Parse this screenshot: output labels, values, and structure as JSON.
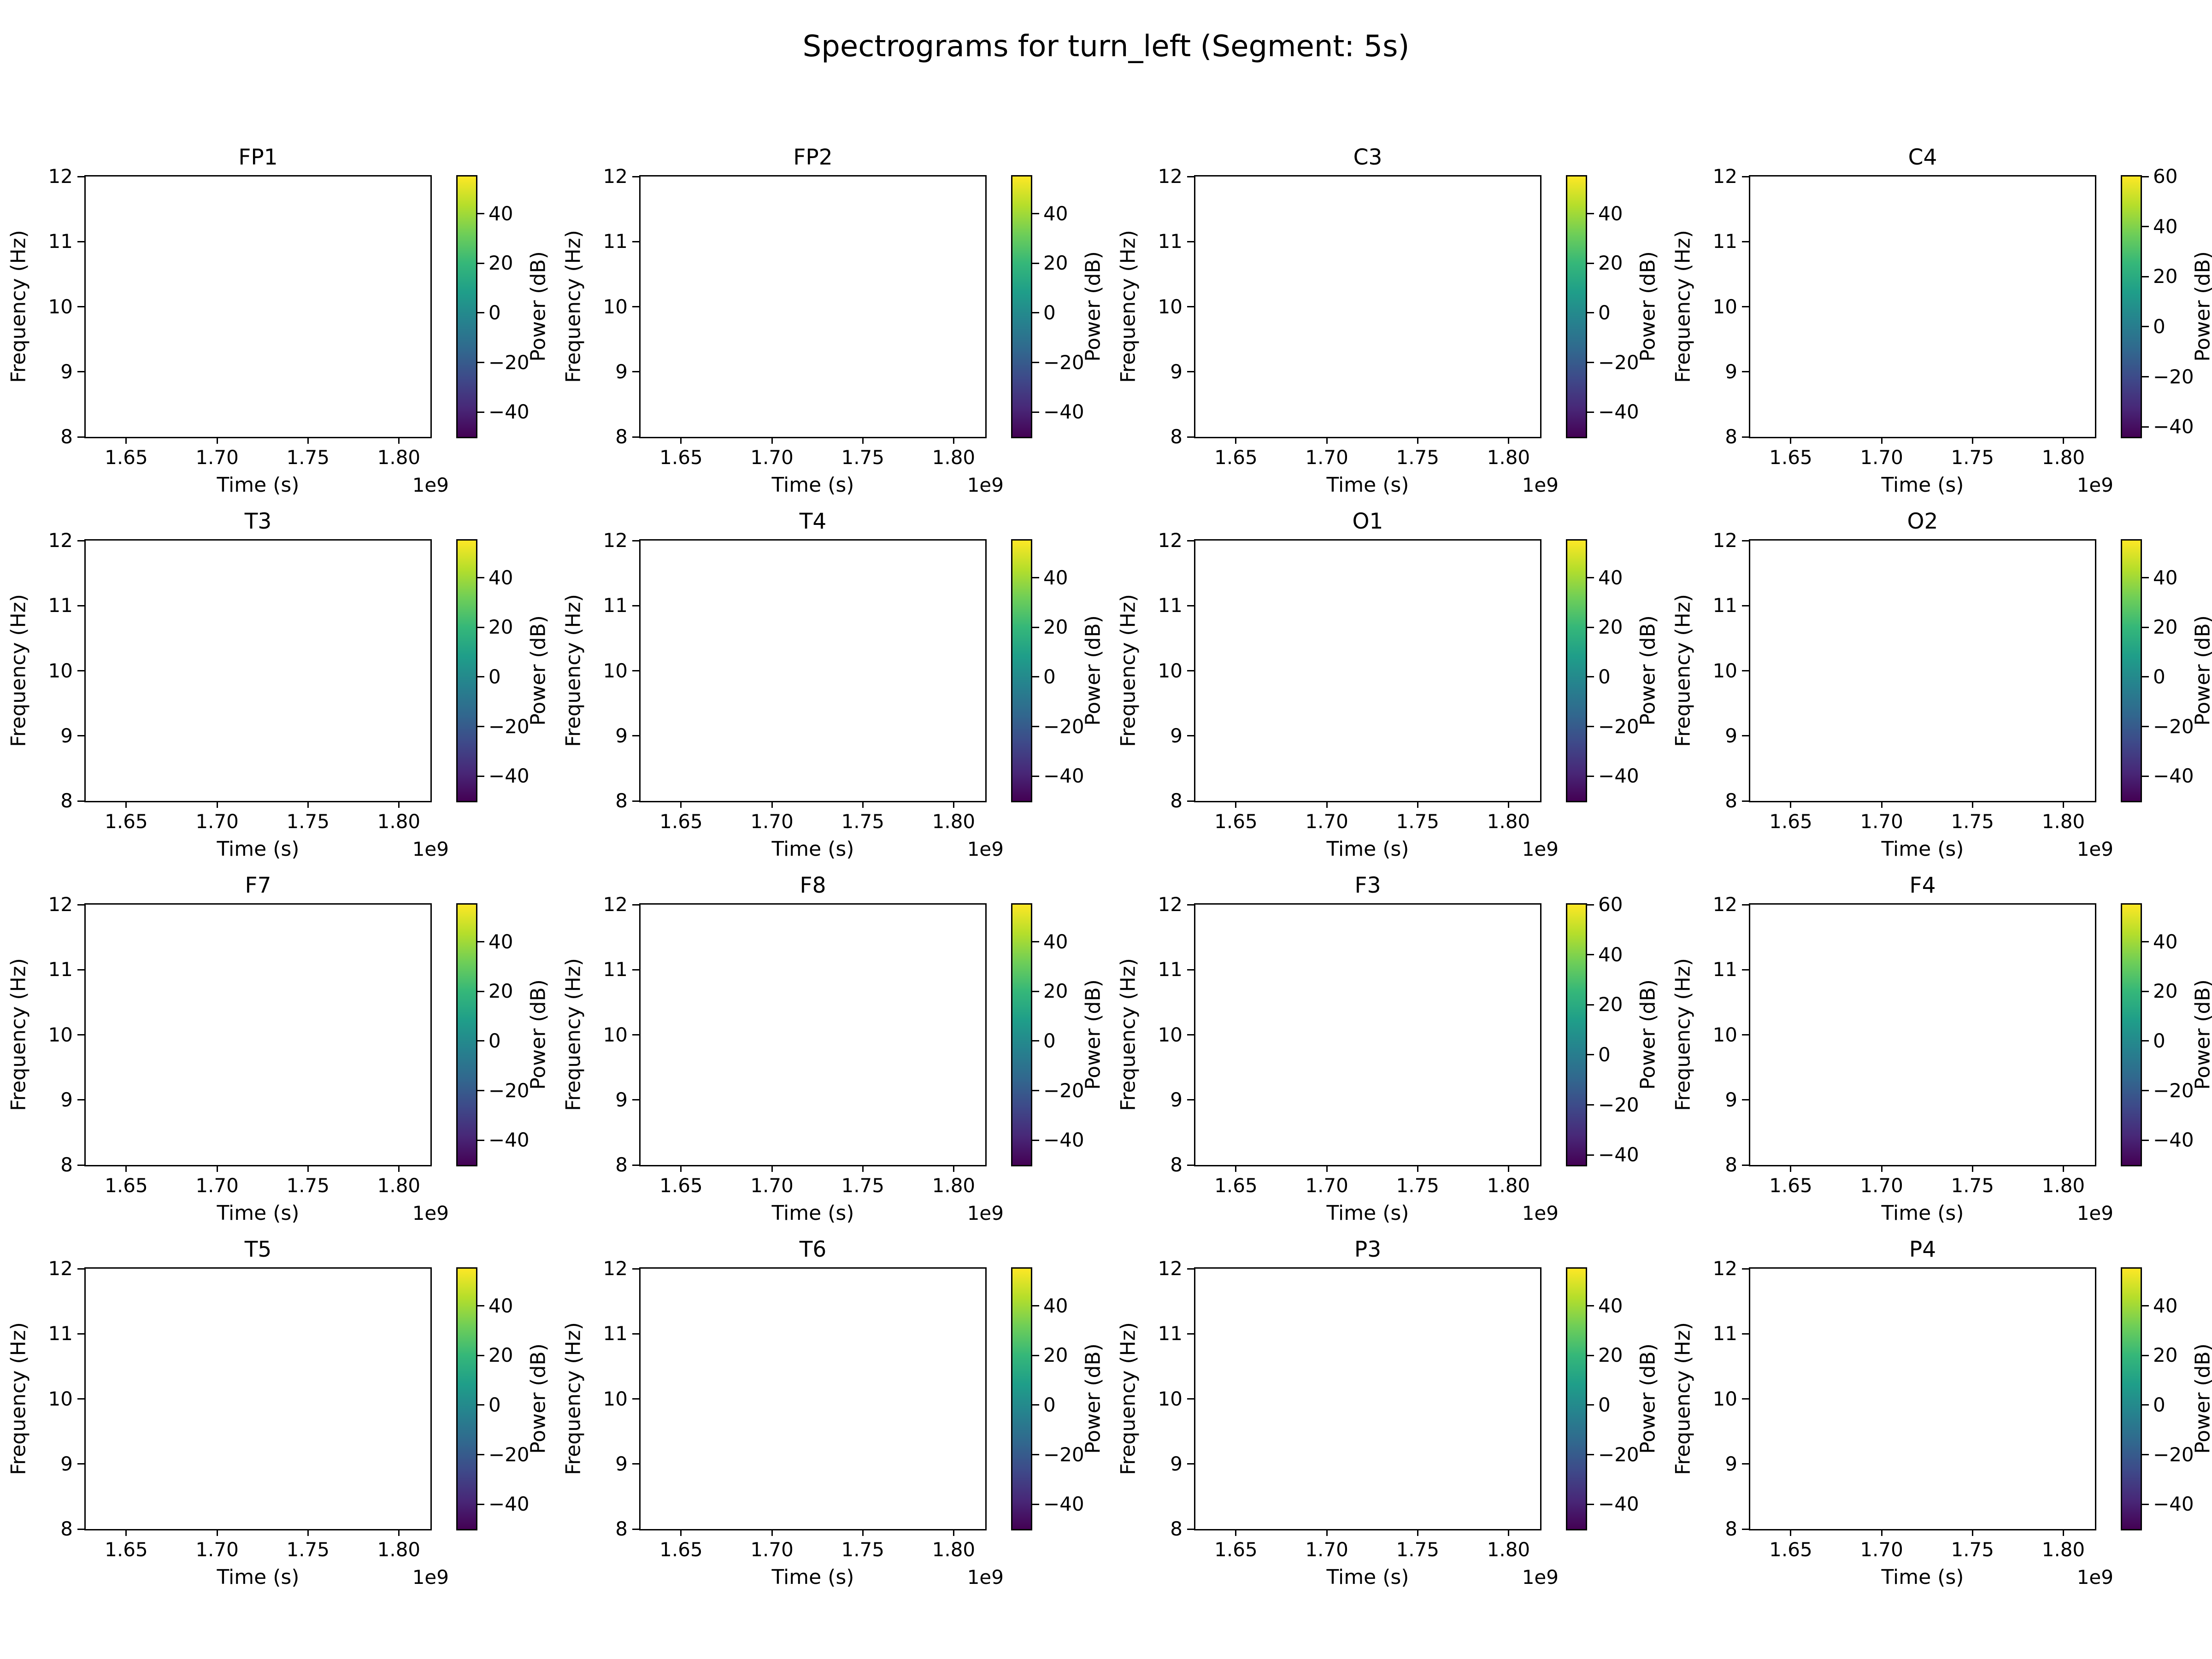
{
  "figure": {
    "suptitle": "Spectrograms for turn_left (Segment: 5s)"
  },
  "axes_shared": {
    "xlabel": "Time (s)",
    "ylabel": "Frequency (Hz)",
    "x_offset_label": "1e9",
    "x_tick_labels": [
      "1.65",
      "1.70",
      "1.75",
      "1.80"
    ],
    "y_tick_labels": [
      "12",
      "11",
      "10",
      "9",
      "8"
    ],
    "colorbar_label": "Power (dB)"
  },
  "chart_data": {
    "type": "heatmap",
    "subtype": "spectrogram-grid",
    "grid": {
      "rows": 4,
      "cols": 4
    },
    "title": "Spectrograms for turn_left (Segment: 5s)",
    "xlabel": "Time (s)",
    "ylabel": "Frequency (Hz)",
    "x_scale_offset": "1e9",
    "xlim": [
      1627700000,
      1817400000
    ],
    "ylim": [
      8,
      12
    ],
    "x_ticks": [
      1650000000,
      1700000000,
      1750000000,
      1800000000
    ],
    "y_ticks": [
      12,
      11,
      10,
      9,
      8
    ],
    "grid_on": false,
    "heatmap_visible": false,
    "plot_area_color": "#ffffff",
    "colormap": "viridis",
    "colormap_stops": [
      "#440154",
      "#482878",
      "#3e4989",
      "#31688e",
      "#26828e",
      "#1f9e89",
      "#35b779",
      "#6ece58",
      "#b5de2b",
      "#fde725"
    ],
    "colorbar_label": "Power (dB)",
    "subplots": [
      {
        "title": "FP1",
        "cbar_ticks": [
          40,
          20,
          0,
          -20,
          -40
        ],
        "cbar_tick_labels": [
          "40",
          "20",
          "0",
          "−20",
          "−40"
        ],
        "cbar_vmin": -50,
        "cbar_vmax": 55
      },
      {
        "title": "FP2",
        "cbar_ticks": [
          40,
          20,
          0,
          -20,
          -40
        ],
        "cbar_tick_labels": [
          "40",
          "20",
          "0",
          "−20",
          "−40"
        ],
        "cbar_vmin": -50,
        "cbar_vmax": 55
      },
      {
        "title": "C3",
        "cbar_ticks": [
          40,
          20,
          0,
          -20,
          -40
        ],
        "cbar_tick_labels": [
          "40",
          "20",
          "0",
          "−20",
          "−40"
        ],
        "cbar_vmin": -50,
        "cbar_vmax": 55
      },
      {
        "title": "C4",
        "cbar_ticks": [
          60,
          40,
          20,
          0,
          -20,
          -40
        ],
        "cbar_tick_labels": [
          "60",
          "40",
          "20",
          "0",
          "−20",
          "−40"
        ],
        "cbar_vmin": -44,
        "cbar_vmax": 60
      },
      {
        "title": "T3",
        "cbar_ticks": [
          40,
          20,
          0,
          -20,
          -40
        ],
        "cbar_tick_labels": [
          "40",
          "20",
          "0",
          "−20",
          "−40"
        ],
        "cbar_vmin": -50,
        "cbar_vmax": 55
      },
      {
        "title": "T4",
        "cbar_ticks": [
          40,
          20,
          0,
          -20,
          -40
        ],
        "cbar_tick_labels": [
          "40",
          "20",
          "0",
          "−20",
          "−40"
        ],
        "cbar_vmin": -50,
        "cbar_vmax": 55
      },
      {
        "title": "O1",
        "cbar_ticks": [
          40,
          20,
          0,
          -20,
          -40
        ],
        "cbar_tick_labels": [
          "40",
          "20",
          "0",
          "−20",
          "−40"
        ],
        "cbar_vmin": -50,
        "cbar_vmax": 55
      },
      {
        "title": "O2",
        "cbar_ticks": [
          40,
          20,
          0,
          -20,
          -40
        ],
        "cbar_tick_labels": [
          "40",
          "20",
          "0",
          "−20",
          "−40"
        ],
        "cbar_vmin": -50,
        "cbar_vmax": 55
      },
      {
        "title": "F7",
        "cbar_ticks": [
          40,
          20,
          0,
          -20,
          -40
        ],
        "cbar_tick_labels": [
          "40",
          "20",
          "0",
          "−20",
          "−40"
        ],
        "cbar_vmin": -50,
        "cbar_vmax": 55
      },
      {
        "title": "F8",
        "cbar_ticks": [
          40,
          20,
          0,
          -20,
          -40
        ],
        "cbar_tick_labels": [
          "40",
          "20",
          "0",
          "−20",
          "−40"
        ],
        "cbar_vmin": -50,
        "cbar_vmax": 55
      },
      {
        "title": "F3",
        "cbar_ticks": [
          60,
          40,
          20,
          0,
          -20,
          -40
        ],
        "cbar_tick_labels": [
          "60",
          "40",
          "20",
          "0",
          "−20",
          "−40"
        ],
        "cbar_vmin": -44,
        "cbar_vmax": 60
      },
      {
        "title": "F4",
        "cbar_ticks": [
          40,
          20,
          0,
          -20,
          -40
        ],
        "cbar_tick_labels": [
          "40",
          "20",
          "0",
          "−20",
          "−40"
        ],
        "cbar_vmin": -50,
        "cbar_vmax": 55
      },
      {
        "title": "T5",
        "cbar_ticks": [
          40,
          20,
          0,
          -20,
          -40
        ],
        "cbar_tick_labels": [
          "40",
          "20",
          "0",
          "−20",
          "−40"
        ],
        "cbar_vmin": -50,
        "cbar_vmax": 55
      },
      {
        "title": "T6",
        "cbar_ticks": [
          40,
          20,
          0,
          -20,
          -40
        ],
        "cbar_tick_labels": [
          "40",
          "20",
          "0",
          "−20",
          "−40"
        ],
        "cbar_vmin": -50,
        "cbar_vmax": 55
      },
      {
        "title": "P3",
        "cbar_ticks": [
          40,
          20,
          0,
          -20,
          -40
        ],
        "cbar_tick_labels": [
          "40",
          "20",
          "0",
          "−20",
          "−40"
        ],
        "cbar_vmin": -50,
        "cbar_vmax": 55
      },
      {
        "title": "P4",
        "cbar_ticks": [
          40,
          20,
          0,
          -20,
          -40
        ],
        "cbar_tick_labels": [
          "40",
          "20",
          "0",
          "−20",
          "−40"
        ],
        "cbar_vmin": -50,
        "cbar_vmax": 55
      }
    ]
  }
}
